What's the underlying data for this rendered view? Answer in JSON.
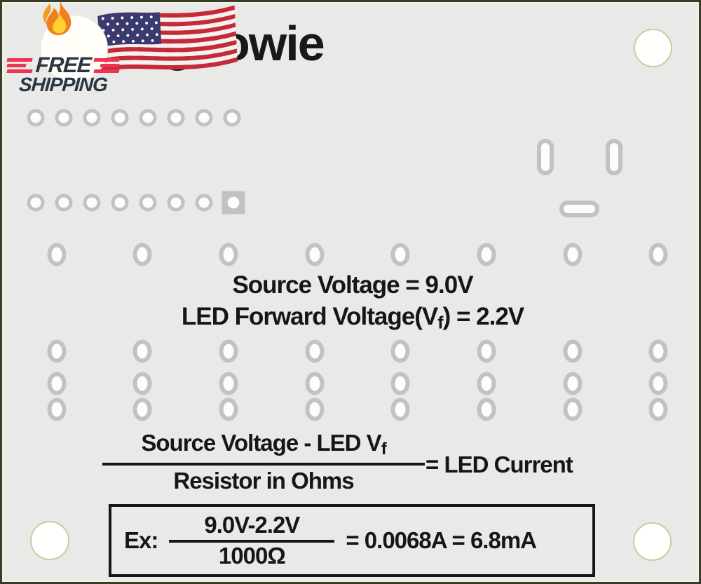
{
  "badge": {
    "free": "FREE",
    "shipping": "SHIPPING"
  },
  "brand": {
    "name": "tingbowie"
  },
  "specs": {
    "line1": "Source Voltage = 9.0V",
    "line2_prefix": "LED Forward Voltage(V",
    "line2_sub": "f",
    "line2_suffix": ") = 2.2V"
  },
  "formula": {
    "numerator_prefix": "Source Voltage - LED V",
    "numerator_sub": "f",
    "denominator": "Resistor in Ohms",
    "result": "= LED Current"
  },
  "example": {
    "label": "Ex:",
    "numerator": "9.0V-2.2V",
    "denominator": "1000Ω",
    "result": "= 0.0068A = 6.8mA"
  },
  "icons": {
    "flame": "flame-icon",
    "flag": "us-flag-icon"
  },
  "colors": {
    "board_bg": "#e9e9e7",
    "pad_gray": "#c2c2c0",
    "frame_olive": "#3a3d29",
    "hole_ring": "#c9cc9e",
    "badge_navy": "#2a3642",
    "badge_red": "#ee3352",
    "flag_blue": "#3a3a6e",
    "flag_red": "#c62a38",
    "text_ink": "#161616"
  }
}
